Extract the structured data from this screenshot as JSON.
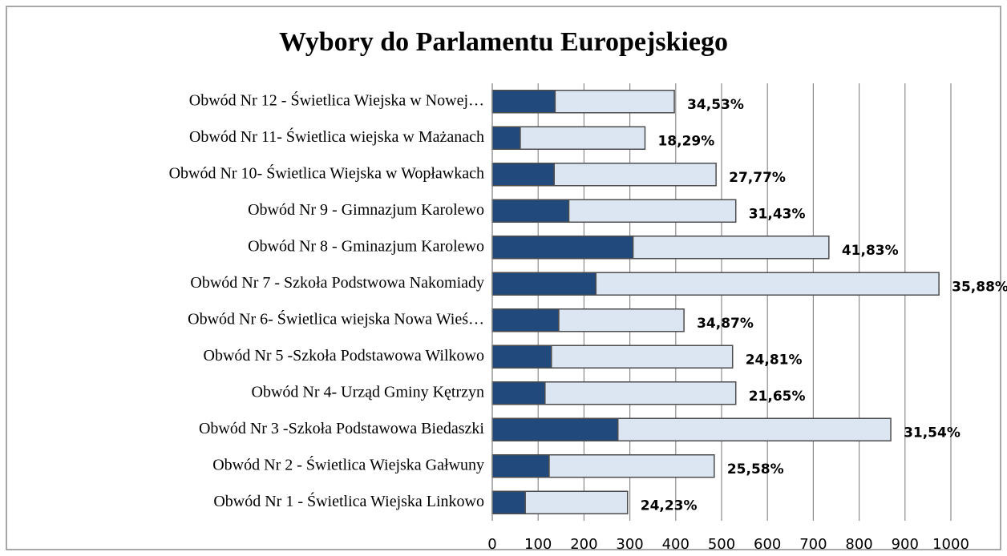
{
  "chart_data": {
    "type": "stacked-barh",
    "title": "Wybory do Parlamentu Europejskiego",
    "categories": [
      "Obwód Nr 12 - Świetlica Wiejska w Nowej…",
      "Obwód Nr 11- Świetlica wiejska w Mażanach",
      "Obwód Nr 10- Świetlica Wiejska w Wopławkach",
      "Obwód Nr 9 - Gimnazjum Karolewo",
      "Obwód Nr 8 - Gminazjum Karolewo",
      "Obwód Nr 7 - Szkoła Podstwowa Nakomiady",
      "Obwód Nr 6- Świetlica wiejska Nowa Wieś…",
      "Obwód Nr 5 -Szkoła Podstawowa Wilkowo",
      "Obwód Nr 4- Urząd Gminy Kętrzyn",
      "Obwód Nr 3 -Szkoła Podstawowa Biedaszki",
      "Obwód Nr 2 - Świetlica Wiejska Gałwuny",
      "Obwód Nr 1 - Świetlica Wiejska Linkowo"
    ],
    "series": [
      {
        "color": "#21497c",
        "values": [
          137,
          61,
          135,
          167,
          307,
          226,
          145,
          129,
          115,
          274,
          124,
          72
        ]
      },
      {
        "color": "#dce6f2",
        "values": [
          260,
          272,
          353,
          364,
          427,
          748,
          273,
          395,
          416,
          595,
          360,
          223
        ]
      }
    ],
    "annotations": [
      "34,53%",
      "18,29%",
      "27,77%",
      "31,43%",
      "41,83%",
      "35,88%",
      "34,87%",
      "24,81%",
      "21,65%",
      "31,54%",
      "25,58%",
      "24,23%"
    ],
    "xlim": [
      0,
      1000
    ],
    "xticks": [
      0,
      100,
      200,
      300,
      400,
      500,
      600,
      700,
      800,
      900,
      1000
    ],
    "grid": true
  }
}
